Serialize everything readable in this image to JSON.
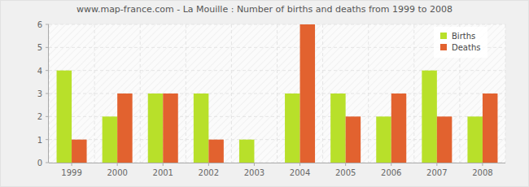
{
  "chart_data": {
    "type": "bar",
    "title": "www.map-france.com - La Mouille : Number of births and deaths from 1999 to 2008",
    "categories": [
      "1999",
      "2000",
      "2001",
      "2002",
      "2003",
      "2004",
      "2005",
      "2006",
      "2007",
      "2008"
    ],
    "series": [
      {
        "name": "Births",
        "color": "#b8e02a",
        "values": [
          4,
          2,
          3,
          3,
          1,
          3,
          3,
          2,
          4,
          2
        ]
      },
      {
        "name": "Deaths",
        "color": "#e2622f",
        "values": [
          1,
          3,
          3,
          1,
          0,
          6,
          2,
          3,
          2,
          3
        ]
      }
    ],
    "ylim": [
      0,
      6
    ],
    "yticks": [
      0,
      1,
      2,
      3,
      4,
      5,
      6
    ],
    "grid": true,
    "legend": "top-right"
  }
}
